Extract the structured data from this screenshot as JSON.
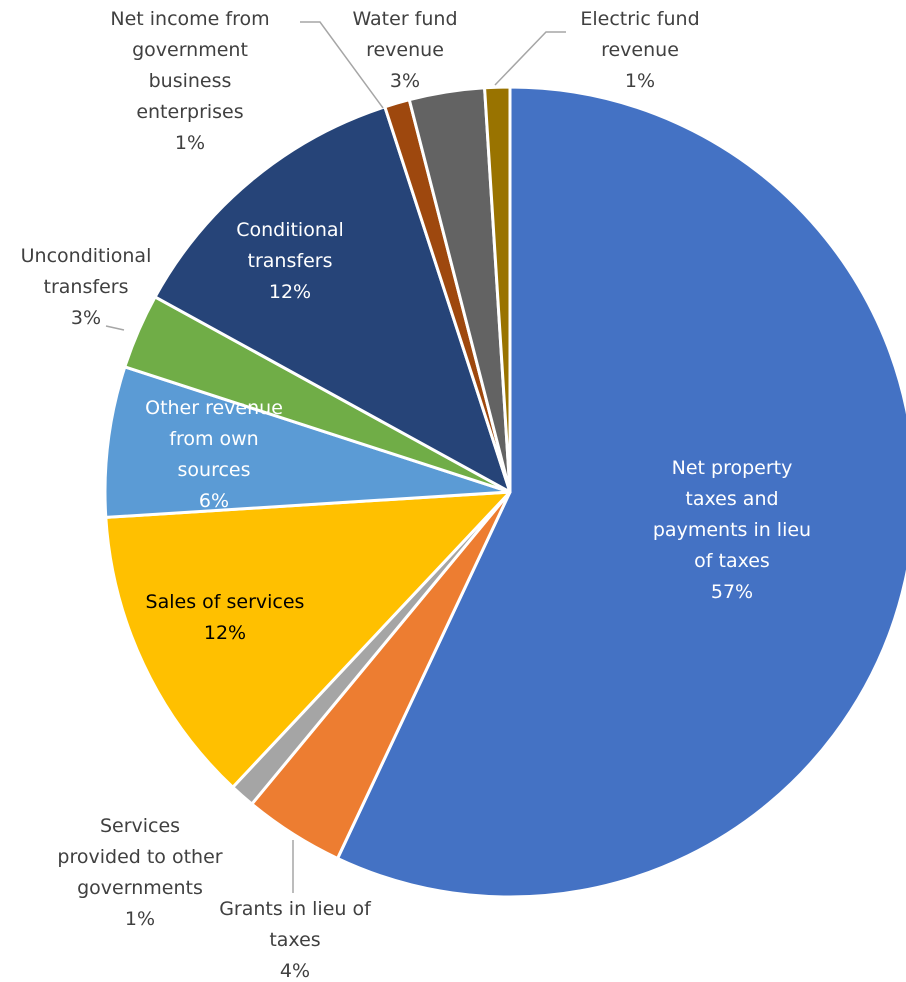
{
  "chart_data": {
    "type": "pie",
    "title": "",
    "slices": [
      {
        "label": "Net property taxes and payments in lieu of taxes",
        "lines": [
          "Net property",
          "taxes and",
          "payments in lieu",
          "of taxes"
        ],
        "value": 57,
        "pct": "57%",
        "color": "#4472c4",
        "label_color": "#ffffff"
      },
      {
        "label": "Grants in lieu of taxes",
        "lines": [
          "Grants in lieu of",
          "taxes"
        ],
        "value": 4,
        "pct": "4%",
        "color": "#ed7d31",
        "label_color": "#404040"
      },
      {
        "label": "Services provided to other governments",
        "lines": [
          "Services",
          "provided to other",
          "governments"
        ],
        "value": 1,
        "pct": "1%",
        "color": "#a5a5a5",
        "label_color": "#404040"
      },
      {
        "label": "Sales of services",
        "lines": [
          "Sales of services"
        ],
        "value": 12,
        "pct": "12%",
        "color": "#ffc000",
        "label_color": "#000000"
      },
      {
        "label": "Other revenue from own sources",
        "lines": [
          "Other revenue",
          "from own",
          "sources"
        ],
        "value": 6,
        "pct": "6%",
        "color": "#5b9bd5",
        "label_color": "#ffffff"
      },
      {
        "label": "Unconditional transfers",
        "lines": [
          "Unconditional",
          "transfers"
        ],
        "value": 3,
        "pct": "3%",
        "color": "#70ad47",
        "label_color": "#404040"
      },
      {
        "label": "Conditional transfers",
        "lines": [
          "Conditional",
          "transfers"
        ],
        "value": 12,
        "pct": "12%",
        "color": "#264478",
        "label_color": "#ffffff"
      },
      {
        "label": "Net income from government business enterprises",
        "lines": [
          "Net income from",
          "government",
          "business",
          "enterprises"
        ],
        "value": 1,
        "pct": "1%",
        "color": "#9e480e",
        "label_color": "#404040"
      },
      {
        "label": "Water fund revenue",
        "lines": [
          "Water fund",
          "revenue"
        ],
        "value": 3,
        "pct": "3%",
        "color": "#636363",
        "label_color": "#404040"
      },
      {
        "label": "Electric fund revenue",
        "lines": [
          "Electric fund",
          "revenue"
        ],
        "value": 1,
        "pct": "1%",
        "color": "#997300",
        "label_color": "#404040"
      }
    ],
    "legend": "none",
    "start": "12 o'clock",
    "direction": "clockwise"
  }
}
